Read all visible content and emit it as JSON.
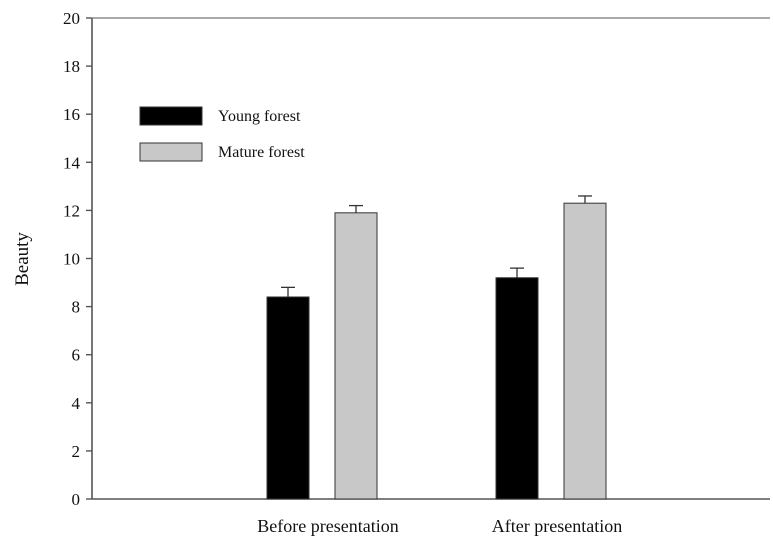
{
  "chart_data": {
    "type": "bar",
    "title": "",
    "xlabel": "",
    "ylabel": "Beauty",
    "ylim": [
      0,
      20
    ],
    "yticks": [
      0,
      2,
      4,
      6,
      8,
      10,
      12,
      14,
      16,
      18,
      20
    ],
    "categories": [
      "Before presentation",
      "After presentation"
    ],
    "series": [
      {
        "name": "Young forest",
        "values": [
          8.4,
          9.2
        ],
        "errors": [
          0.4,
          0.4
        ],
        "color": "#000000"
      },
      {
        "name": "Mature forest",
        "values": [
          11.9,
          12.3
        ],
        "errors": [
          0.3,
          0.3
        ],
        "color": "#c8c8c8"
      }
    ],
    "legend_position": "top-left",
    "grid": false,
    "error_bars": "upper"
  }
}
